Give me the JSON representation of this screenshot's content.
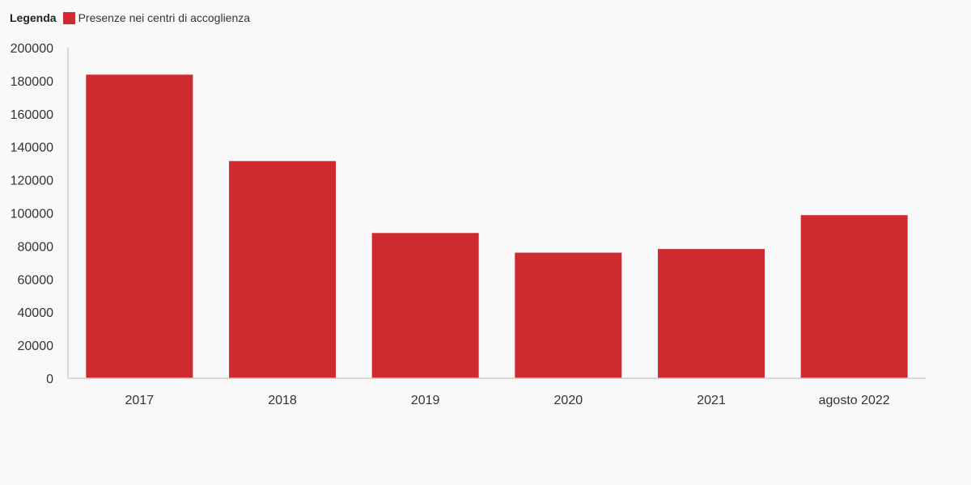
{
  "legend": {
    "title": "Legenda",
    "items": [
      {
        "label": "Presenze nei centri di accoglienza",
        "color": "#cf2a30"
      }
    ]
  },
  "chart_data": {
    "type": "bar",
    "categories": [
      "2017",
      "2018",
      "2019",
      "2020",
      "2021",
      "agosto 2022"
    ],
    "series": [
      {
        "name": "Presenze nei centri di accoglienza",
        "color": "#cf2a30",
        "values": [
          183700,
          131400,
          87900,
          76000,
          78200,
          98700
        ]
      }
    ],
    "yticks": [
      "0",
      "20000",
      "40000",
      "60000",
      "80000",
      "100000",
      "120000",
      "140000",
      "160000",
      "180000",
      "200000"
    ],
    "ylim": [
      0,
      200000
    ],
    "grid": false,
    "legend_position": "top-left"
  }
}
